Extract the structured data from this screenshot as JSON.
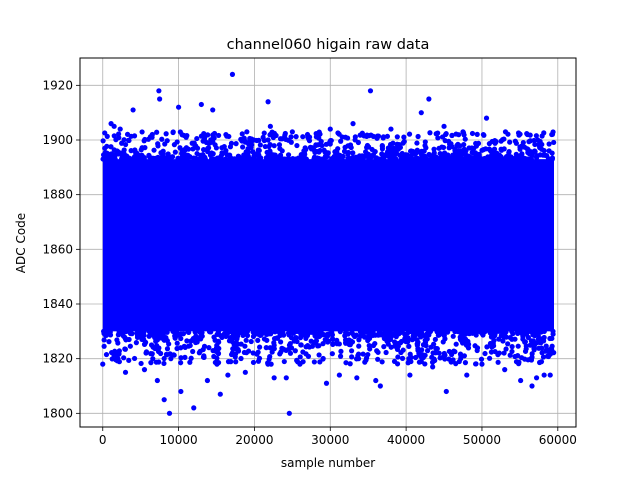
{
  "chart_data": {
    "type": "scatter",
    "title": "channel060 higain raw data",
    "xlabel": "sample number",
    "ylabel": "ADC Code",
    "xlim": [
      -3000,
      62400
    ],
    "ylim": [
      1795,
      1930
    ],
    "x_ticks": [
      0,
      10000,
      20000,
      30000,
      40000,
      50000,
      60000
    ],
    "x_tick_labels": [
      "0",
      "10000",
      "20000",
      "30000",
      "40000",
      "50000",
      "60000"
    ],
    "y_ticks": [
      1800,
      1820,
      1840,
      1860,
      1880,
      1900,
      1920
    ],
    "y_tick_labels": [
      "1800",
      "1820",
      "1840",
      "1860",
      "1880",
      "1900",
      "1920"
    ],
    "grid": true,
    "marker_color": "#0000ff",
    "series": [
      {
        "x_range": [
          0,
          59500
        ],
        "dense_band": [
          1830,
          1893
        ],
        "outliers": [
          [
            1900,
            1896
          ],
          [
            1100,
            1906
          ],
          [
            1500,
            1905
          ],
          [
            2300,
            1904
          ],
          [
            4000,
            1911
          ],
          [
            7400,
            1918
          ],
          [
            7500,
            1915
          ],
          [
            10000,
            1912
          ],
          [
            13000,
            1913
          ],
          [
            14500,
            1911
          ],
          [
            17100,
            1924
          ],
          [
            21800,
            1914
          ],
          [
            22100,
            1905
          ],
          [
            25000,
            1903
          ],
          [
            35300,
            1918
          ],
          [
            42000,
            1910
          ],
          [
            43000,
            1915
          ],
          [
            47500,
            1903
          ],
          [
            50600,
            1908
          ],
          [
            53100,
            1903
          ],
          [
            56000,
            1902
          ],
          [
            59200,
            1902
          ],
          [
            30000,
            1904
          ],
          [
            33000,
            1906
          ],
          [
            27000,
            1902
          ],
          [
            38000,
            1904
          ],
          [
            45000,
            1905
          ],
          [
            11000,
            1901
          ],
          [
            19000,
            1903
          ],
          [
            0,
            1818
          ],
          [
            3000,
            1815
          ],
          [
            5500,
            1816
          ],
          [
            7200,
            1812
          ],
          [
            8100,
            1805
          ],
          [
            8800,
            1800
          ],
          [
            10300,
            1808
          ],
          [
            12000,
            1802
          ],
          [
            13800,
            1812
          ],
          [
            15500,
            1807
          ],
          [
            16500,
            1814
          ],
          [
            18800,
            1815
          ],
          [
            22600,
            1813
          ],
          [
            24200,
            1813
          ],
          [
            24600,
            1800
          ],
          [
            29500,
            1811
          ],
          [
            31200,
            1814
          ],
          [
            33500,
            1813
          ],
          [
            36000,
            1812
          ],
          [
            36600,
            1810
          ],
          [
            40500,
            1814
          ],
          [
            45300,
            1808
          ],
          [
            48000,
            1814
          ],
          [
            53000,
            1816
          ],
          [
            55100,
            1812
          ],
          [
            56600,
            1810
          ],
          [
            58200,
            1814
          ],
          [
            59000,
            1814
          ],
          [
            57200,
            1813
          ],
          [
            2000,
            1820
          ],
          [
            26000,
            1818
          ],
          [
            43500,
            1817
          ],
          [
            50000,
            1818
          ]
        ]
      }
    ]
  }
}
